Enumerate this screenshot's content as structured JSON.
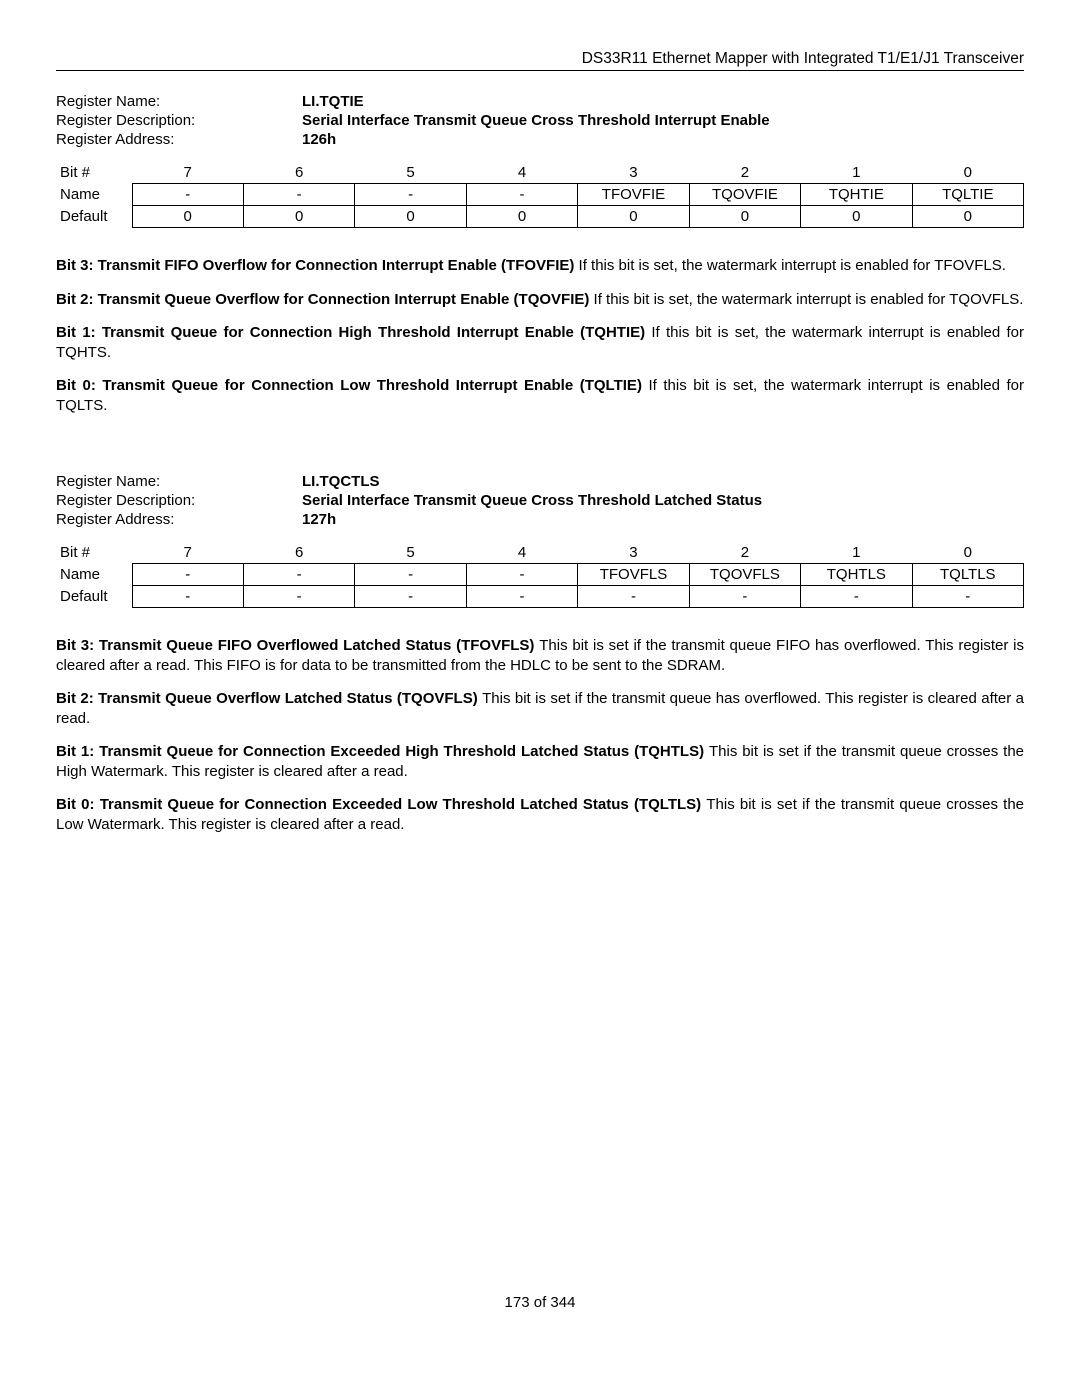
{
  "doc_title": "DS33R11 Ethernet Mapper with Integrated T1/E1/J1 Transceiver",
  "footer": "173 of 344",
  "labels": {
    "reg_name": "Register Name:",
    "reg_desc": "Register Description:",
    "reg_addr": "Register Address:",
    "bitnum": "Bit #",
    "name": "Name",
    "default": "Default"
  },
  "reg1": {
    "name": "LI.TQTIE",
    "desc": "Serial Interface Transmit Queue Cross Threshold Interrupt Enable",
    "addr": "126h",
    "bits": [
      "7",
      "6",
      "5",
      "4",
      "3",
      "2",
      "1",
      "0"
    ],
    "names": [
      "-",
      "-",
      "-",
      "-",
      "TFOVFIE",
      "TQOVFIE",
      "TQHTIE",
      "TQLTIE"
    ],
    "defaults": [
      "0",
      "0",
      "0",
      "0",
      "0",
      "0",
      "0",
      "0"
    ],
    "paras": [
      {
        "lead": "Bit 3: Transmit FIFO Overflow for Connection Interrupt Enable (TFOVFIE) ",
        "rest": "If this bit is set, the watermark interrupt is enabled for TFOVFLS."
      },
      {
        "lead": "Bit 2: Transmit Queue Overflow for Connection Interrupt Enable (TQOVFIE) ",
        "rest": "If this bit is set, the watermark interrupt is enabled for TQOVFLS."
      },
      {
        "lead": "Bit 1: Transmit Queue for Connection High Threshold Interrupt Enable (TQHTIE) ",
        "rest": "If this bit is set, the watermark interrupt is enabled for TQHTS."
      },
      {
        "lead": "Bit 0: Transmit Queue for Connection Low Threshold Interrupt Enable (TQLTIE) ",
        "rest": "If this bit is set, the watermark interrupt is enabled for TQLTS."
      }
    ]
  },
  "reg2": {
    "name": "LI.TQCTLS",
    "desc": "Serial Interface Transmit Queue Cross Threshold Latched Status",
    "addr": "127h",
    "bits": [
      "7",
      "6",
      "5",
      "4",
      "3",
      "2",
      "1",
      "0"
    ],
    "names": [
      "-",
      "-",
      "-",
      "-",
      "TFOVFLS",
      "TQOVFLS",
      "TQHTLS",
      "TQLTLS"
    ],
    "defaults": [
      "-",
      "-",
      "-",
      "-",
      "-",
      "-",
      "-",
      "-"
    ],
    "paras": [
      {
        "lead": "Bit 3: Transmit Queue FIFO Overflowed Latched Status (TFOVFLS) ",
        "rest": "This bit is set if the transmit queue FIFO has overflowed. This register is cleared after a read. This FIFO is for data to be transmitted from the HDLC to be sent to the SDRAM."
      },
      {
        "lead": "Bit 2: Transmit Queue Overflow Latched Status (TQOVFLS) ",
        "rest": "This bit is set if the transmit queue has overflowed. This register is cleared after a read."
      },
      {
        "lead": "Bit 1: Transmit Queue for Connection Exceeded High Threshold Latched Status (TQHTLS) ",
        "rest": "This bit is set if the transmit queue crosses the High Watermark.  This register is cleared after a read."
      },
      {
        "lead": "Bit 0: Transmit Queue for Connection Exceeded Low Threshold Latched Status (TQLTLS) ",
        "rest": "This bit is set if the transmit queue crosses the Low Watermark. This register is cleared after a read."
      }
    ]
  }
}
